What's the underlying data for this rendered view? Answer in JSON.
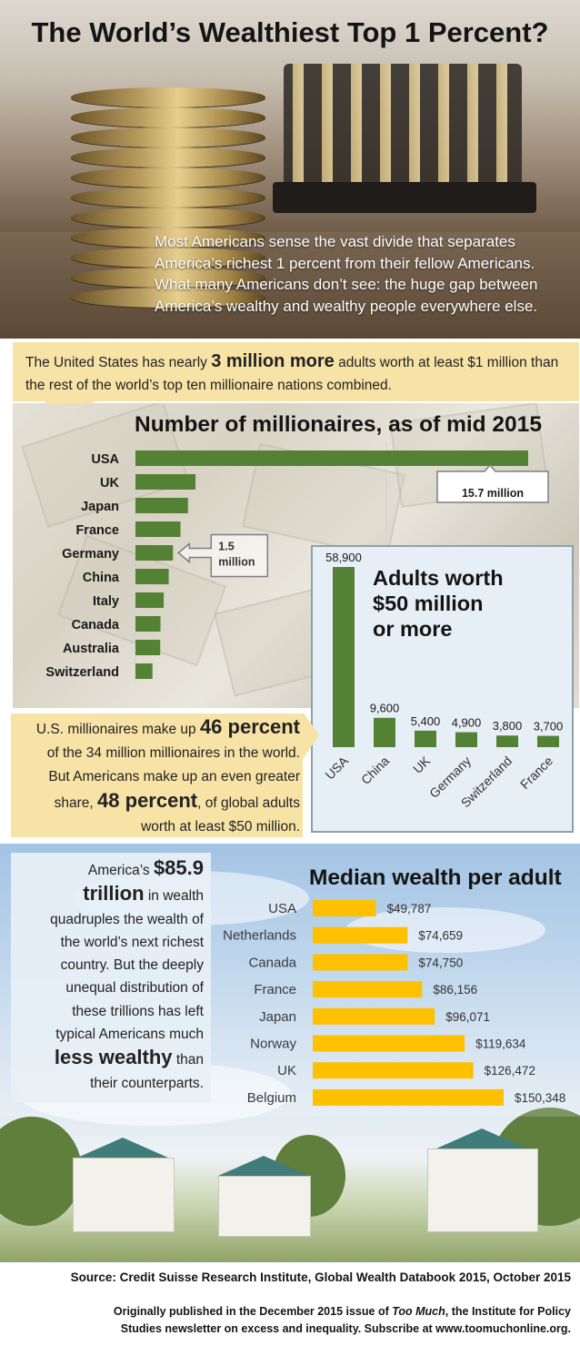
{
  "header": {
    "title": "The World’s Wealthiest Top 1 Percent?",
    "intro": "Most Americans sense the vast divide that separates America’s richest 1 percent from their fellow Americans. What many Americans don’t see: the huge gap between America’s wealthy and wealthy people everywhere else."
  },
  "callout_top": {
    "pre": "The United States has nearly ",
    "emph": "3 million more",
    "post": " adults worth at least $1 million than the rest of the world’s top ten millionaire nations combined."
  },
  "callout_mid": {
    "l1_pre": "U.S. millionaires make up ",
    "l1_emph": "46 percent",
    "l2": "of the 34 million millionaires in the world.",
    "l3": "But Americans make up an even greater",
    "l4_pre": "share, ",
    "l4_emph": "48 percent",
    "l4_post": ", of global adults",
    "l5": "worth at least $50 million."
  },
  "wealth_callout": {
    "l1_pre": "America’s ",
    "l1_emph": "$85.9",
    "l2_emph": "trillion",
    "l2_post": " in wealth",
    "l3": "quadruples the wealth of",
    "l4": "the world’s next richest",
    "l5": "country. But the deeply",
    "l6": "unequal distribution of",
    "l7": "these trillions has left",
    "l8": "typical Americans much",
    "l9_emph": "less wealthy",
    "l9_post": " than",
    "l10": "their counterparts."
  },
  "footer": {
    "source": "Source: Credit Suisse Research Institute, Global Wealth Databook 2015, October 2015",
    "credit_pre": "Originally published in the December 2015 issue of ",
    "credit_italic": "Too Much",
    "credit_post": ", the Institute for Policy",
    "credit_line2": "Studies newsletter on excess and inequality. Subscribe at www.toomuchonline.org."
  },
  "colors": {
    "bar_green": "#548235",
    "bar_yellow": "#ffc000",
    "callout_bg": "#f7e3a6",
    "panel_bg": "#e6eff5"
  },
  "chart_data": [
    {
      "type": "bar",
      "orientation": "horizontal",
      "title": "Number of millionaires, as of mid 2015",
      "categories": [
        "USA",
        "UK",
        "Japan",
        "France",
        "Germany",
        "China",
        "Italy",
        "Canada",
        "Australia",
        "Switzerland"
      ],
      "values_millions": [
        15.7,
        2.4,
        2.1,
        1.8,
        1.5,
        1.33,
        1.13,
        1.0,
        0.99,
        0.68
      ],
      "annotations": [
        {
          "category": "USA",
          "text": "15.7 million"
        },
        {
          "category": "Germany",
          "text": "1.5 million",
          "line1": "1.5",
          "line2": "million"
        }
      ],
      "color": "#548235",
      "gridlines": true
    },
    {
      "type": "bar",
      "orientation": "vertical",
      "title": "Adults worth $50 million or more",
      "title_lines": [
        "Adults worth",
        "$50 million",
        "or more"
      ],
      "categories": [
        "USA",
        "China",
        "UK",
        "Germany",
        "Switzerland",
        "France"
      ],
      "values": [
        58900,
        9600,
        5400,
        4900,
        3800,
        3700
      ],
      "labels": [
        "58,900",
        "9,600",
        "5,400",
        "4,900",
        "3,800",
        "3,700"
      ],
      "color": "#548235"
    },
    {
      "type": "bar",
      "orientation": "horizontal",
      "title": "Median wealth per adult",
      "categories": [
        "USA",
        "Netherlands",
        "Canada",
        "France",
        "Japan",
        "Norway",
        "UK",
        "Belgium"
      ],
      "values": [
        49787,
        74659,
        74750,
        86156,
        96071,
        119634,
        126472,
        150348
      ],
      "labels": [
        "$49,787",
        "$74,659",
        "$74,750",
        "$86,156",
        "$96,071",
        "$119,634",
        "$126,472",
        "$150,348"
      ],
      "color": "#ffc000"
    }
  ]
}
